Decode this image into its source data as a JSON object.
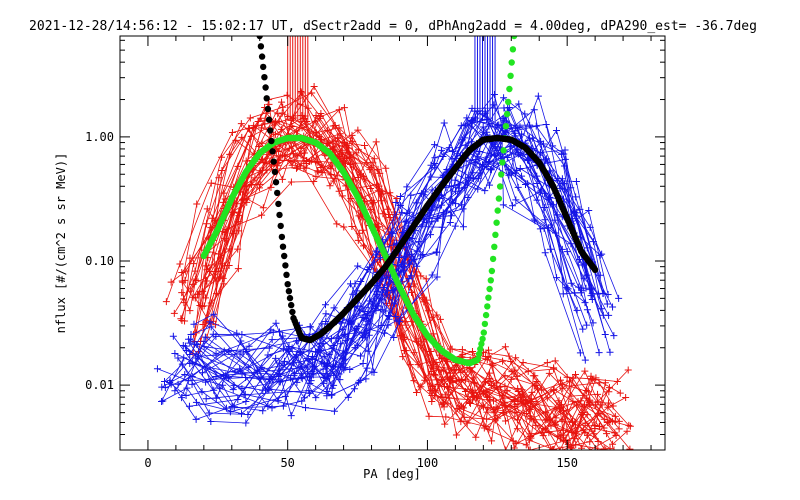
{
  "chart_data": {
    "type": "line",
    "title": "2021-12-28/14:56:12 - 15:02:17 UT, dSectr2add = 0, dPhAng2add = 4.00deg, dPA290_est= -36.7deg",
    "xlabel": "PA [deg]",
    "ylabel": "nflux [#/(cm^2 s sr MeV)]",
    "xlim": [
      -10,
      185
    ],
    "ylim": [
      0.003,
      6.5
    ],
    "yscale": "log",
    "grid": false,
    "x_ticks": [
      0,
      50,
      100,
      150
    ],
    "x_tick_labels": [
      "0",
      "50",
      "100",
      "150"
    ],
    "y_ticks": [
      0.01,
      0.1,
      1.0
    ],
    "y_tick_labels": [
      "0.01",
      "0.10",
      "1.00"
    ],
    "colors": {
      "red": "#e8140f",
      "blue": "#1414e6",
      "green": "#22e422",
      "black": "#000000"
    },
    "series": [
      {
        "color": "red",
        "style": "thin-lines-plus-markers",
        "x": [
          16,
          20,
          25,
          30,
          35,
          40,
          45,
          50,
          55,
          60,
          65,
          70,
          75,
          80,
          85,
          90,
          95,
          100,
          105,
          110,
          115,
          120,
          125,
          130,
          135,
          140,
          145,
          150,
          155,
          160,
          165
        ],
        "y": [
          0.04,
          0.08,
          0.16,
          0.32,
          0.55,
          0.78,
          0.9,
          0.96,
          0.98,
          0.94,
          0.8,
          0.6,
          0.4,
          0.24,
          0.13,
          0.06,
          0.03,
          0.017,
          0.012,
          0.01,
          0.009,
          0.008,
          0.008,
          0.007,
          0.007,
          0.006,
          0.006,
          0.006,
          0.006,
          0.006,
          0.006
        ]
      },
      {
        "color": "blue",
        "style": "thin-lines-plus-markers",
        "x": [
          12,
          20,
          30,
          40,
          50,
          55,
          60,
          65,
          70,
          75,
          80,
          85,
          90,
          95,
          100,
          105,
          110,
          115,
          120,
          125,
          130,
          135,
          140,
          145,
          150,
          155,
          160
        ],
        "y": [
          0.015,
          0.014,
          0.013,
          0.013,
          0.013,
          0.014,
          0.015,
          0.018,
          0.022,
          0.03,
          0.045,
          0.07,
          0.11,
          0.17,
          0.26,
          0.4,
          0.58,
          0.78,
          0.92,
          0.96,
          0.9,
          0.75,
          0.55,
          0.34,
          0.18,
          0.08,
          0.035
        ]
      },
      {
        "color": "green",
        "style": "thick-dotted",
        "x": [
          20,
          25,
          30,
          35,
          40,
          45,
          50,
          55,
          60,
          65,
          70,
          75,
          80,
          85,
          90,
          95,
          100,
          105,
          110,
          115,
          118,
          120,
          123,
          126,
          129,
          131
        ],
        "y": [
          0.11,
          0.18,
          0.32,
          0.52,
          0.74,
          0.9,
          0.98,
          0.98,
          0.9,
          0.74,
          0.52,
          0.33,
          0.19,
          0.11,
          0.062,
          0.037,
          0.025,
          0.019,
          0.016,
          0.015,
          0.016,
          0.025,
          0.08,
          0.4,
          2.0,
          6.5
        ]
      },
      {
        "color": "black",
        "style": "thick-dotted",
        "x": [
          40,
          42,
          44,
          46,
          48,
          50,
          52,
          55,
          58,
          62,
          66,
          70,
          75,
          80,
          85,
          90,
          95,
          100,
          105,
          110,
          115,
          120,
          125,
          130,
          135,
          140,
          145,
          150,
          155,
          160
        ],
        "y": [
          6.5,
          2.6,
          1.0,
          0.4,
          0.15,
          0.065,
          0.035,
          0.024,
          0.023,
          0.026,
          0.031,
          0.038,
          0.05,
          0.066,
          0.09,
          0.13,
          0.19,
          0.28,
          0.4,
          0.56,
          0.78,
          0.95,
          0.98,
          0.95,
          0.82,
          0.62,
          0.4,
          0.22,
          0.12,
          0.085
        ]
      }
    ],
    "annotations": [
      {
        "type": "vertical-ticks",
        "color": "red",
        "x_range": [
          50,
          58
        ],
        "y_range": [
          1.35,
          6.5
        ]
      },
      {
        "type": "vertical-ticks",
        "color": "blue",
        "x_range": [
          117,
          125
        ],
        "y_range": [
          1.35,
          6.5
        ]
      }
    ]
  }
}
